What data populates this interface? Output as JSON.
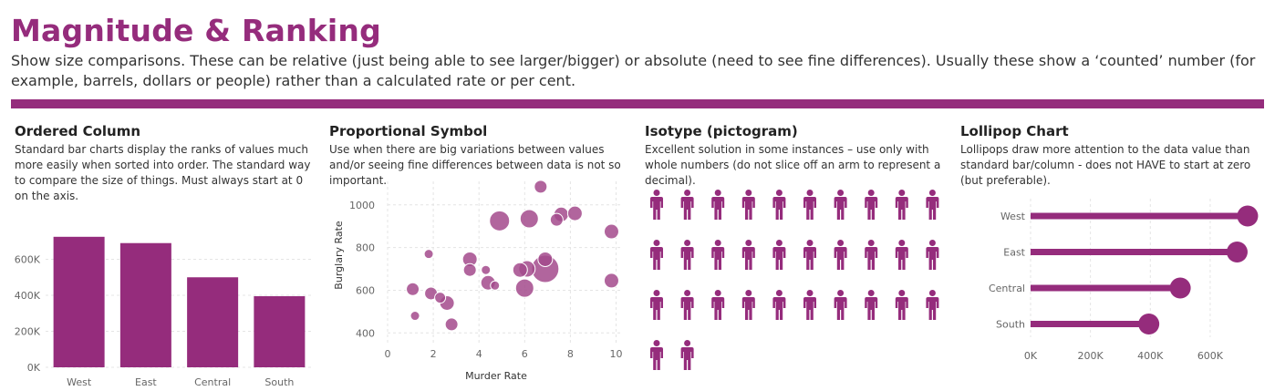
{
  "header": {
    "title": "Magnitude & Ranking",
    "subtitle": "Show size comparisons. These can be relative (just being able to see larger/bigger) or absolute (need to see fine differences). Usually these show a ‘counted’ number (for example, barrels, dollars or people) rather than a calculated rate or per cent."
  },
  "colors": {
    "accent": "#952c7c",
    "bubble": "#a34a8c"
  },
  "panels": {
    "ordered_column": {
      "title": "Ordered Column",
      "desc": "Standard bar charts display the ranks of values much more easily when sorted into order. The standard way to compare the size of things. Must always start at 0 on the axis."
    },
    "proportional_symbol": {
      "title": "Proportional Symbol",
      "desc": "Use when there are big variations between values and/or seeing fine differences between data is not so important."
    },
    "isotype": {
      "title": "Isotype (pictogram)",
      "desc": "Excellent solution in some instances – use only with whole numbers (do not slice off an arm to represent a decimal)."
    },
    "lollipop": {
      "title": "Lollipop Chart",
      "desc": "Lollipops draw more attention to the data value than standard bar/column - does not HAVE to start at zero (but preferable)."
    }
  },
  "chart_data": [
    {
      "type": "bar",
      "categories": [
        "West",
        "East",
        "Central",
        "South"
      ],
      "values": [
        725000,
        690000,
        500000,
        395000
      ],
      "yticks": [
        0,
        200000,
        400000,
        600000
      ],
      "ytick_labels": [
        "0K",
        "200K",
        "400K",
        "600K"
      ],
      "ylim": [
        0,
        800000
      ]
    },
    {
      "type": "scatter",
      "xlabel": "Murder Rate",
      "ylabel": "Burglary Rate",
      "xlim": [
        0,
        10.3
      ],
      "ylim": [
        350,
        1110
      ],
      "xticks": [
        0,
        2,
        4,
        6,
        8,
        10
      ],
      "yticks": [
        400,
        600,
        800,
        1000
      ],
      "points": [
        {
          "x": 1.1,
          "y": 605,
          "s": 7
        },
        {
          "x": 1.2,
          "y": 480,
          "s": 5
        },
        {
          "x": 1.8,
          "y": 770,
          "s": 5
        },
        {
          "x": 1.9,
          "y": 585,
          "s": 7
        },
        {
          "x": 2.3,
          "y": 565,
          "s": 6
        },
        {
          "x": 2.6,
          "y": 540,
          "s": 8
        },
        {
          "x": 2.8,
          "y": 440,
          "s": 7
        },
        {
          "x": 3.6,
          "y": 745,
          "s": 8
        },
        {
          "x": 3.6,
          "y": 695,
          "s": 7
        },
        {
          "x": 4.3,
          "y": 695,
          "s": 5
        },
        {
          "x": 4.4,
          "y": 635,
          "s": 8
        },
        {
          "x": 4.7,
          "y": 622,
          "s": 5
        },
        {
          "x": 4.9,
          "y": 925,
          "s": 11
        },
        {
          "x": 5.8,
          "y": 695,
          "s": 8
        },
        {
          "x": 6.0,
          "y": 610,
          "s": 10
        },
        {
          "x": 6.1,
          "y": 700,
          "s": 9
        },
        {
          "x": 6.2,
          "y": 935,
          "s": 10
        },
        {
          "x": 6.7,
          "y": 1085,
          "s": 7
        },
        {
          "x": 6.9,
          "y": 700,
          "s": 15
        },
        {
          "x": 6.9,
          "y": 745,
          "s": 8
        },
        {
          "x": 7.4,
          "y": 930,
          "s": 7
        },
        {
          "x": 7.6,
          "y": 955,
          "s": 8
        },
        {
          "x": 8.2,
          "y": 960,
          "s": 8
        },
        {
          "x": 9.8,
          "y": 875,
          "s": 8
        },
        {
          "x": 9.8,
          "y": 645,
          "s": 8
        }
      ]
    },
    {
      "type": "pictogram",
      "count": 32,
      "per_row": 10,
      "icon": "person-icon"
    },
    {
      "type": "lollipop",
      "categories": [
        "West",
        "East",
        "Central",
        "South"
      ],
      "values": [
        725000,
        690000,
        500000,
        395000
      ],
      "xticks": [
        0,
        200000,
        400000,
        600000
      ],
      "xtick_labels": [
        "0K",
        "200K",
        "400K",
        "600K"
      ],
      "xlim": [
        0,
        780000
      ]
    }
  ]
}
